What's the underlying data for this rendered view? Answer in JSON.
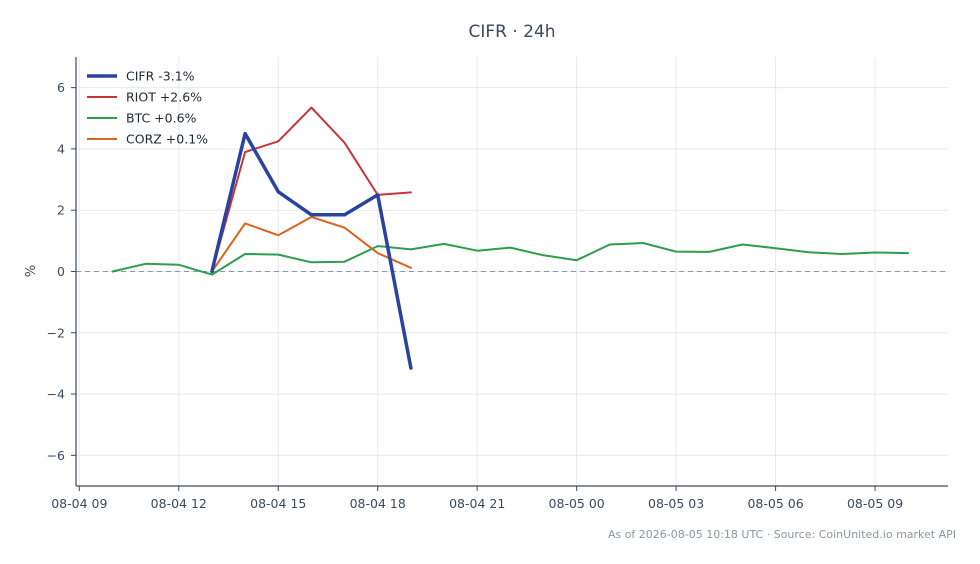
{
  "chart_data": {
    "type": "line",
    "title": "CIFR · 24h",
    "ylabel": "%",
    "xlabel": "",
    "ylim": [
      -7,
      7
    ],
    "yticks": [
      -6,
      -4,
      -2,
      0,
      2,
      4,
      6
    ],
    "ytick_labels": [
      "−6",
      "−4",
      "−2",
      "0",
      "2",
      "4",
      "6"
    ],
    "xlim": [
      -0.1,
      26.2
    ],
    "xticks": [
      0,
      3,
      6,
      9,
      12,
      15,
      18,
      21,
      24
    ],
    "xtick_labels": [
      "08-04 09",
      "08-04 12",
      "08-04 15",
      "08-04 18",
      "08-04 21",
      "08-05 00",
      "08-05 03",
      "08-05 06",
      "08-05 09"
    ],
    "grid": true,
    "zero_line": true,
    "legend_position": "top-left",
    "series": [
      {
        "name": "CIFR -3.1%",
        "color": "#2a43a0",
        "width": 3.5,
        "x": [
          4,
          5,
          6,
          7,
          8,
          9,
          10
        ],
        "y": [
          0.0,
          4.5,
          2.6,
          1.85,
          1.85,
          2.5,
          -3.15
        ]
      },
      {
        "name": "RIOT +2.6%",
        "color": "#c8333a",
        "width": 2,
        "x": [
          4,
          5,
          6,
          7,
          8,
          9,
          10
        ],
        "y": [
          0.0,
          3.9,
          4.25,
          5.35,
          4.2,
          2.5,
          2.58
        ]
      },
      {
        "name": "BTC +0.6%",
        "color": "#2e9d4e",
        "width": 2,
        "x": [
          1,
          2,
          3,
          4,
          5,
          6,
          7,
          8,
          9,
          10,
          11,
          12,
          13,
          14,
          15,
          16,
          17,
          18,
          19,
          20,
          21,
          22,
          23,
          24,
          25
        ],
        "y": [
          0.0,
          0.25,
          0.22,
          -0.1,
          0.57,
          0.55,
          0.3,
          0.32,
          0.83,
          0.72,
          0.9,
          0.68,
          0.78,
          0.53,
          0.37,
          0.88,
          0.93,
          0.65,
          0.64,
          0.88,
          0.76,
          0.63,
          0.57,
          0.62,
          0.6
        ]
      },
      {
        "name": "CORZ +0.1%",
        "color": "#d7641f",
        "width": 2,
        "x": [
          4,
          5,
          6,
          7,
          8,
          9,
          10
        ],
        "y": [
          0.0,
          1.57,
          1.18,
          1.78,
          1.43,
          0.6,
          0.12
        ]
      }
    ],
    "footer": "As of 2026-08-05 10:18 UTC · Source: CoinUnited.io market API"
  }
}
